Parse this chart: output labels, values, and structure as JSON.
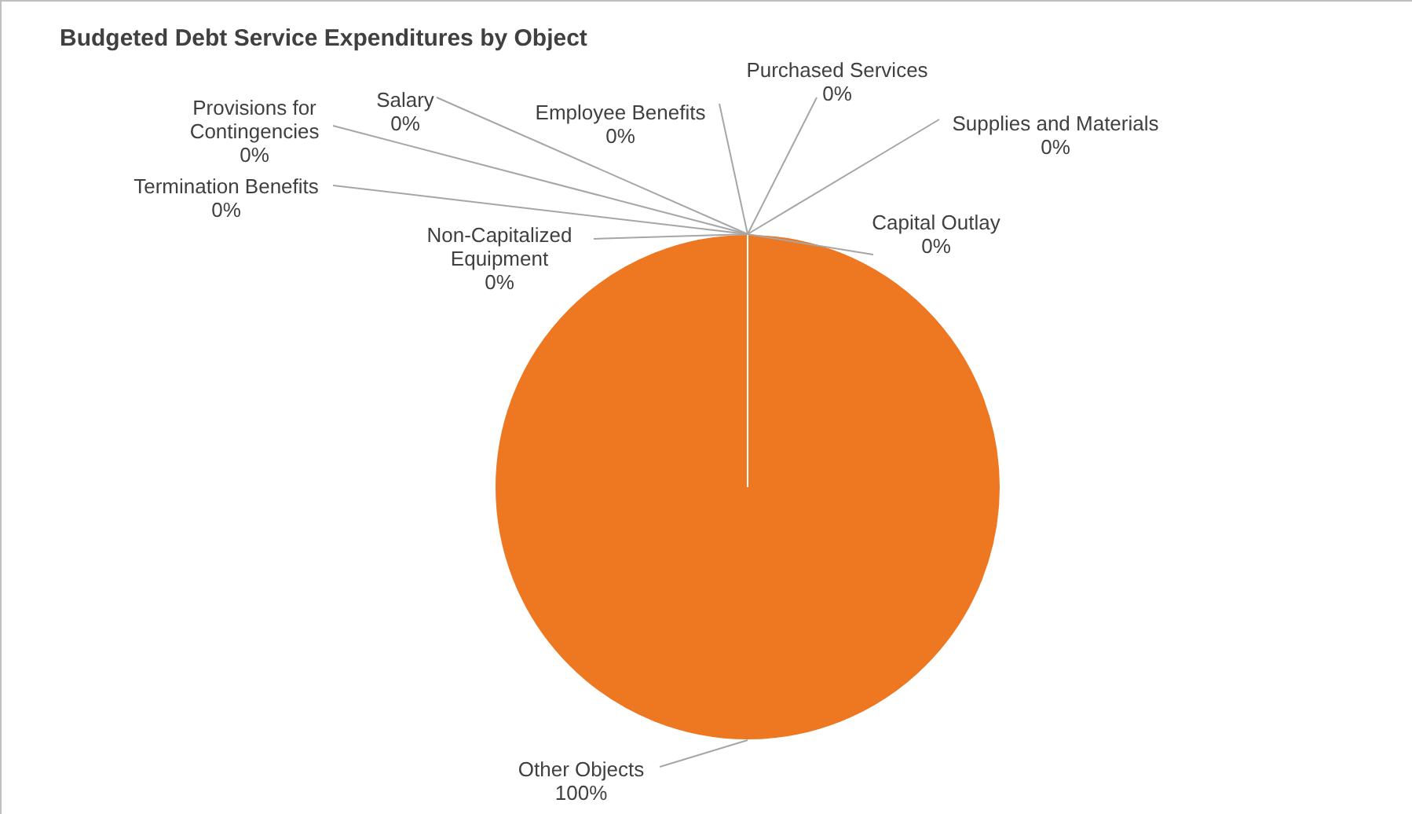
{
  "chart_data": {
    "type": "pie",
    "title": "Budgeted Debt Service Expenditures by Object",
    "categories": [
      "Salary",
      "Employee Benefits",
      "Purchased Services",
      "Supplies and Materials",
      "Capital Outlay",
      "Other Objects",
      "Non-Capitalized Equipment",
      "Termination Benefits",
      "Provisions for Contingencies"
    ],
    "values": [
      0,
      0,
      0,
      0,
      0,
      100,
      0,
      0,
      0
    ],
    "colors": [
      "#4472c4",
      "#ed7d31",
      "#a5a5a5",
      "#ffc000",
      "#5b9bd5",
      "#ee7722",
      "#264478",
      "#9e480e",
      "#636363"
    ],
    "value_labels": [
      "0%",
      "0%",
      "0%",
      "0%",
      "0%",
      "100%",
      "0%",
      "0%",
      "0%"
    ],
    "legend": false
  }
}
